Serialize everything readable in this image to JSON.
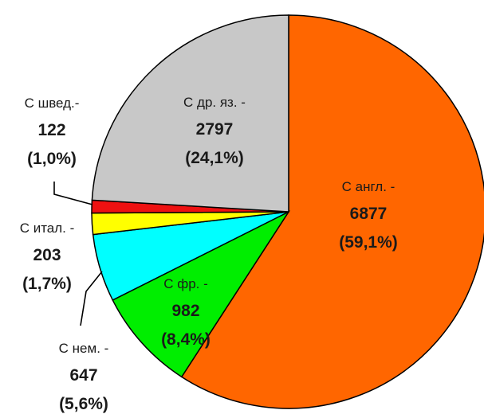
{
  "chart_data": {
    "type": "pie",
    "title": "",
    "slices": [
      {
        "key": "eng",
        "label": "С англ. -",
        "value": 6877,
        "percent_label": "(59,1%)",
        "color": "#ff6600"
      },
      {
        "key": "fr",
        "label": "С фр. -",
        "value": 982,
        "percent_label": "(8,4%)",
        "color": "#00ee00"
      },
      {
        "key": "ger",
        "label": "С нем. -",
        "value": 647,
        "percent_label": "(5,6%)",
        "color": "#00ffff"
      },
      {
        "key": "ita",
        "label": "С итал. -",
        "value": 203,
        "percent_label": "(1,7%)",
        "color": "#ffff00"
      },
      {
        "key": "swe",
        "label": "С швед.-",
        "value": 122,
        "percent_label": "(1,0%)",
        "color": "#ee1111"
      },
      {
        "key": "oth",
        "label": "С др. яз. -",
        "value": 2797,
        "percent_label": "(24,1%)",
        "color": "#c8c8c8"
      }
    ]
  }
}
